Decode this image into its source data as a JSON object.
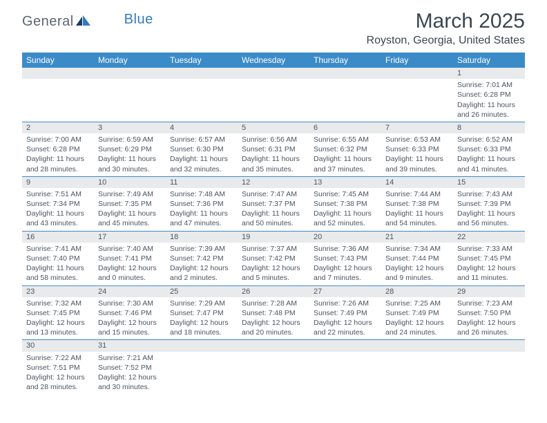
{
  "logo": {
    "text1": "General",
    "text2": "Blue"
  },
  "title": "March 2025",
  "location": "Royston, Georgia, United States",
  "colors": {
    "header_bg": "#3b8bc9",
    "header_text": "#ffffff",
    "daynum_bg": "#e9eaec",
    "text": "#4b5560",
    "rule": "#3b8bc9",
    "logo_gray": "#5c6670",
    "logo_blue": "#2f7bbf"
  },
  "weekdays": [
    "Sunday",
    "Monday",
    "Tuesday",
    "Wednesday",
    "Thursday",
    "Friday",
    "Saturday"
  ],
  "weeks": [
    [
      null,
      null,
      null,
      null,
      null,
      null,
      {
        "n": "1",
        "sr": "Sunrise: 7:01 AM",
        "ss": "Sunset: 6:28 PM",
        "dl": "Daylight: 11 hours and 26 minutes."
      }
    ],
    [
      {
        "n": "2",
        "sr": "Sunrise: 7:00 AM",
        "ss": "Sunset: 6:28 PM",
        "dl": "Daylight: 11 hours and 28 minutes."
      },
      {
        "n": "3",
        "sr": "Sunrise: 6:59 AM",
        "ss": "Sunset: 6:29 PM",
        "dl": "Daylight: 11 hours and 30 minutes."
      },
      {
        "n": "4",
        "sr": "Sunrise: 6:57 AM",
        "ss": "Sunset: 6:30 PM",
        "dl": "Daylight: 11 hours and 32 minutes."
      },
      {
        "n": "5",
        "sr": "Sunrise: 6:56 AM",
        "ss": "Sunset: 6:31 PM",
        "dl": "Daylight: 11 hours and 35 minutes."
      },
      {
        "n": "6",
        "sr": "Sunrise: 6:55 AM",
        "ss": "Sunset: 6:32 PM",
        "dl": "Daylight: 11 hours and 37 minutes."
      },
      {
        "n": "7",
        "sr": "Sunrise: 6:53 AM",
        "ss": "Sunset: 6:33 PM",
        "dl": "Daylight: 11 hours and 39 minutes."
      },
      {
        "n": "8",
        "sr": "Sunrise: 6:52 AM",
        "ss": "Sunset: 6:33 PM",
        "dl": "Daylight: 11 hours and 41 minutes."
      }
    ],
    [
      {
        "n": "9",
        "sr": "Sunrise: 7:51 AM",
        "ss": "Sunset: 7:34 PM",
        "dl": "Daylight: 11 hours and 43 minutes."
      },
      {
        "n": "10",
        "sr": "Sunrise: 7:49 AM",
        "ss": "Sunset: 7:35 PM",
        "dl": "Daylight: 11 hours and 45 minutes."
      },
      {
        "n": "11",
        "sr": "Sunrise: 7:48 AM",
        "ss": "Sunset: 7:36 PM",
        "dl": "Daylight: 11 hours and 47 minutes."
      },
      {
        "n": "12",
        "sr": "Sunrise: 7:47 AM",
        "ss": "Sunset: 7:37 PM",
        "dl": "Daylight: 11 hours and 50 minutes."
      },
      {
        "n": "13",
        "sr": "Sunrise: 7:45 AM",
        "ss": "Sunset: 7:38 PM",
        "dl": "Daylight: 11 hours and 52 minutes."
      },
      {
        "n": "14",
        "sr": "Sunrise: 7:44 AM",
        "ss": "Sunset: 7:38 PM",
        "dl": "Daylight: 11 hours and 54 minutes."
      },
      {
        "n": "15",
        "sr": "Sunrise: 7:43 AM",
        "ss": "Sunset: 7:39 PM",
        "dl": "Daylight: 11 hours and 56 minutes."
      }
    ],
    [
      {
        "n": "16",
        "sr": "Sunrise: 7:41 AM",
        "ss": "Sunset: 7:40 PM",
        "dl": "Daylight: 11 hours and 58 minutes."
      },
      {
        "n": "17",
        "sr": "Sunrise: 7:40 AM",
        "ss": "Sunset: 7:41 PM",
        "dl": "Daylight: 12 hours and 0 minutes."
      },
      {
        "n": "18",
        "sr": "Sunrise: 7:39 AM",
        "ss": "Sunset: 7:42 PM",
        "dl": "Daylight: 12 hours and 2 minutes."
      },
      {
        "n": "19",
        "sr": "Sunrise: 7:37 AM",
        "ss": "Sunset: 7:42 PM",
        "dl": "Daylight: 12 hours and 5 minutes."
      },
      {
        "n": "20",
        "sr": "Sunrise: 7:36 AM",
        "ss": "Sunset: 7:43 PM",
        "dl": "Daylight: 12 hours and 7 minutes."
      },
      {
        "n": "21",
        "sr": "Sunrise: 7:34 AM",
        "ss": "Sunset: 7:44 PM",
        "dl": "Daylight: 12 hours and 9 minutes."
      },
      {
        "n": "22",
        "sr": "Sunrise: 7:33 AM",
        "ss": "Sunset: 7:45 PM",
        "dl": "Daylight: 12 hours and 11 minutes."
      }
    ],
    [
      {
        "n": "23",
        "sr": "Sunrise: 7:32 AM",
        "ss": "Sunset: 7:45 PM",
        "dl": "Daylight: 12 hours and 13 minutes."
      },
      {
        "n": "24",
        "sr": "Sunrise: 7:30 AM",
        "ss": "Sunset: 7:46 PM",
        "dl": "Daylight: 12 hours and 15 minutes."
      },
      {
        "n": "25",
        "sr": "Sunrise: 7:29 AM",
        "ss": "Sunset: 7:47 PM",
        "dl": "Daylight: 12 hours and 18 minutes."
      },
      {
        "n": "26",
        "sr": "Sunrise: 7:28 AM",
        "ss": "Sunset: 7:48 PM",
        "dl": "Daylight: 12 hours and 20 minutes."
      },
      {
        "n": "27",
        "sr": "Sunrise: 7:26 AM",
        "ss": "Sunset: 7:49 PM",
        "dl": "Daylight: 12 hours and 22 minutes."
      },
      {
        "n": "28",
        "sr": "Sunrise: 7:25 AM",
        "ss": "Sunset: 7:49 PM",
        "dl": "Daylight: 12 hours and 24 minutes."
      },
      {
        "n": "29",
        "sr": "Sunrise: 7:23 AM",
        "ss": "Sunset: 7:50 PM",
        "dl": "Daylight: 12 hours and 26 minutes."
      }
    ],
    [
      {
        "n": "30",
        "sr": "Sunrise: 7:22 AM",
        "ss": "Sunset: 7:51 PM",
        "dl": "Daylight: 12 hours and 28 minutes."
      },
      {
        "n": "31",
        "sr": "Sunrise: 7:21 AM",
        "ss": "Sunset: 7:52 PM",
        "dl": "Daylight: 12 hours and 30 minutes."
      },
      null,
      null,
      null,
      null,
      null
    ]
  ]
}
